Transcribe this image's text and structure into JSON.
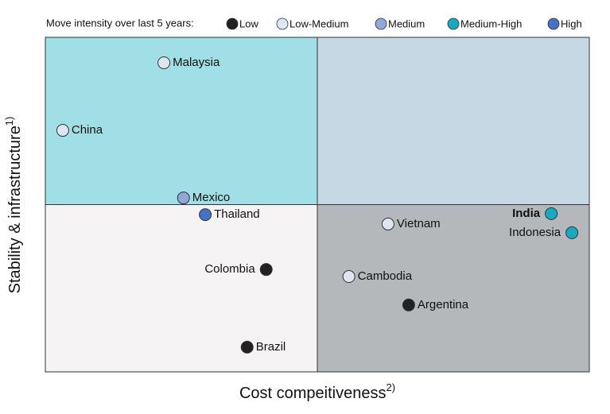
{
  "chart_data": {
    "type": "scatter",
    "legend_title": "Move intensity over last 5 years:",
    "x_label": "Cost compeitiveness",
    "x_label_note": "2)",
    "y_label": "Stability & infrastructure",
    "y_label_note": "1)",
    "xlim": [
      0,
      10
    ],
    "ylim": [
      0,
      10
    ],
    "quadrant_colors": [
      "#a0dfe6",
      "#c6d8e3",
      "#f5f3f3",
      "#b5b8ba"
    ],
    "series": [
      {
        "name": "Low",
        "color": "#222222",
        "labels": [
          "Colombia",
          "Brazil",
          "Argentina"
        ],
        "x": [
          4.06,
          3.71,
          6.68
        ],
        "y": [
          3.06,
          0.74,
          2.0
        ]
      },
      {
        "name": "Low-Medium",
        "color": "#dde6f2",
        "labels": [
          "Malaysia",
          "China",
          "Vietnam",
          "Cambodia"
        ],
        "x": [
          2.18,
          0.32,
          6.3,
          5.58
        ],
        "y": [
          9.24,
          7.22,
          4.42,
          2.85
        ]
      },
      {
        "name": "Medium",
        "color": "#8fa8d8",
        "labels": [
          "Mexico"
        ],
        "x": [
          2.54
        ],
        "y": [
          5.2
        ]
      },
      {
        "name": "Medium-High",
        "color": "#17a9c2",
        "labels": [
          "India",
          "Indonesia"
        ],
        "x": [
          9.3,
          9.68
        ],
        "y": [
          4.73,
          4.16
        ],
        "bold": [
          true,
          false
        ]
      },
      {
        "name": "High",
        "color": "#4472c4",
        "labels": [
          "Thailand"
        ],
        "x": [
          2.94
        ],
        "y": [
          4.7
        ]
      }
    ]
  }
}
